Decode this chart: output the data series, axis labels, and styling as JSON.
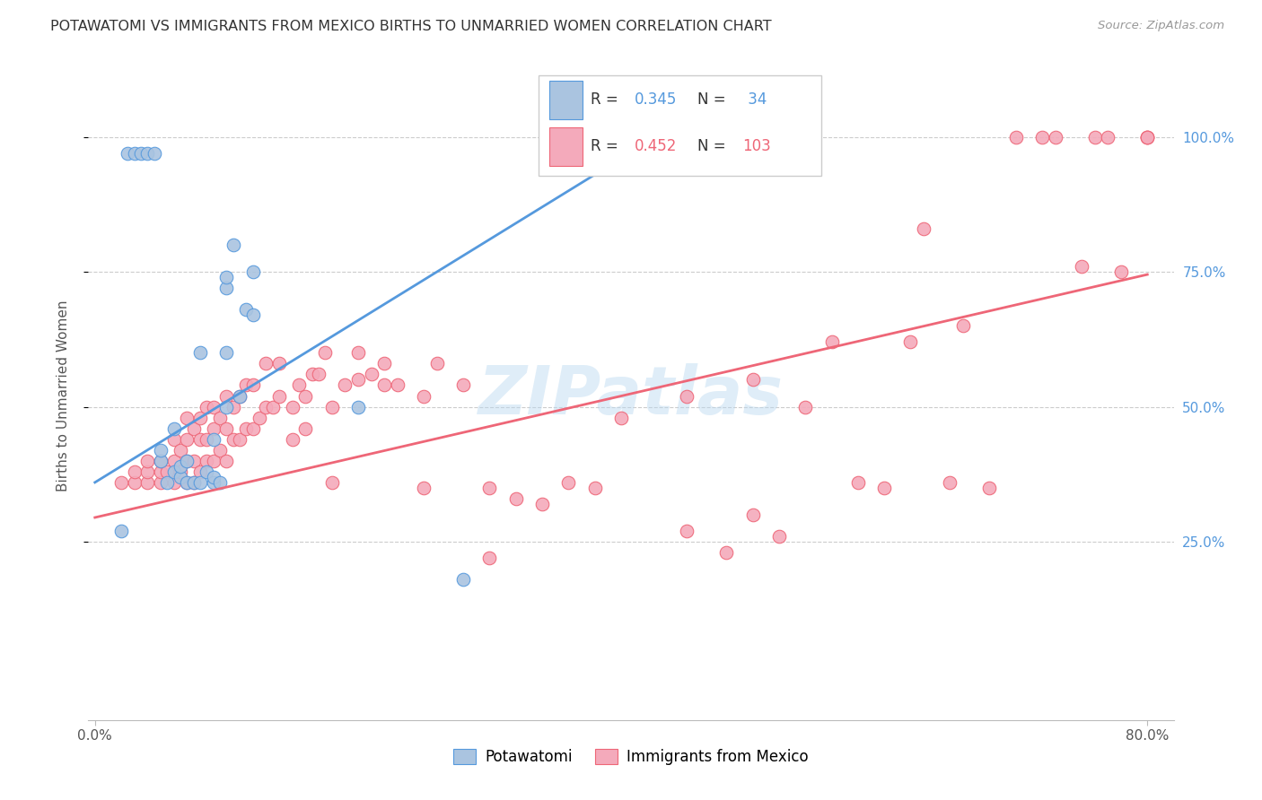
{
  "title": "POTAWATOMI VS IMMIGRANTS FROM MEXICO BIRTHS TO UNMARRIED WOMEN CORRELATION CHART",
  "source": "Source: ZipAtlas.com",
  "ylabel": "Births to Unmarried Women",
  "ytick_labels": [
    "25.0%",
    "50.0%",
    "75.0%",
    "100.0%"
  ],
  "ytick_values": [
    0.25,
    0.5,
    0.75,
    1.0
  ],
  "xlim": [
    -0.005,
    0.82
  ],
  "ylim": [
    -0.08,
    1.12
  ],
  "color_blue": "#aac4e0",
  "color_pink": "#f4aabb",
  "line_blue": "#5599dd",
  "line_pink": "#ee6677",
  "watermark": "ZIPatlas",
  "blue_line_x": [
    0.0,
    0.44
  ],
  "blue_line_y": [
    0.36,
    1.02
  ],
  "pink_line_x": [
    0.0,
    0.8
  ],
  "pink_line_y": [
    0.295,
    0.745
  ],
  "potawatomi_x": [
    0.02,
    0.025,
    0.03,
    0.035,
    0.04,
    0.045,
    0.05,
    0.05,
    0.055,
    0.06,
    0.06,
    0.065,
    0.065,
    0.07,
    0.07,
    0.075,
    0.08,
    0.08,
    0.085,
    0.09,
    0.09,
    0.09,
    0.095,
    0.1,
    0.1,
    0.1,
    0.1,
    0.105,
    0.11,
    0.115,
    0.12,
    0.12,
    0.2,
    0.28
  ],
  "potawatomi_y": [
    0.27,
    0.97,
    0.97,
    0.97,
    0.97,
    0.97,
    0.4,
    0.42,
    0.36,
    0.38,
    0.46,
    0.37,
    0.39,
    0.36,
    0.4,
    0.36,
    0.36,
    0.6,
    0.38,
    0.36,
    0.37,
    0.44,
    0.36,
    0.5,
    0.6,
    0.72,
    0.74,
    0.8,
    0.52,
    0.68,
    0.67,
    0.75,
    0.5,
    0.18
  ],
  "mexico_x": [
    0.02,
    0.03,
    0.03,
    0.04,
    0.04,
    0.04,
    0.05,
    0.05,
    0.05,
    0.055,
    0.06,
    0.06,
    0.06,
    0.065,
    0.065,
    0.07,
    0.07,
    0.07,
    0.07,
    0.075,
    0.075,
    0.075,
    0.08,
    0.08,
    0.08,
    0.085,
    0.085,
    0.085,
    0.09,
    0.09,
    0.09,
    0.095,
    0.095,
    0.1,
    0.1,
    0.1,
    0.105,
    0.105,
    0.11,
    0.11,
    0.115,
    0.115,
    0.12,
    0.12,
    0.125,
    0.13,
    0.13,
    0.135,
    0.14,
    0.14,
    0.15,
    0.15,
    0.155,
    0.16,
    0.16,
    0.165,
    0.17,
    0.175,
    0.18,
    0.18,
    0.19,
    0.2,
    0.2,
    0.21,
    0.22,
    0.22,
    0.23,
    0.25,
    0.25,
    0.26,
    0.28,
    0.3,
    0.3,
    0.32,
    0.34,
    0.36,
    0.38,
    0.4,
    0.45,
    0.45,
    0.48,
    0.5,
    0.5,
    0.52,
    0.54,
    0.56,
    0.58,
    0.6,
    0.62,
    0.63,
    0.65,
    0.66,
    0.68,
    0.7,
    0.72,
    0.73,
    0.75,
    0.76,
    0.77,
    0.78,
    0.8,
    0.8,
    0.8
  ],
  "mexico_y": [
    0.36,
    0.36,
    0.38,
    0.36,
    0.38,
    0.4,
    0.36,
    0.38,
    0.4,
    0.38,
    0.36,
    0.4,
    0.44,
    0.38,
    0.42,
    0.36,
    0.4,
    0.44,
    0.48,
    0.36,
    0.4,
    0.46,
    0.38,
    0.44,
    0.48,
    0.4,
    0.44,
    0.5,
    0.4,
    0.46,
    0.5,
    0.42,
    0.48,
    0.4,
    0.46,
    0.52,
    0.44,
    0.5,
    0.44,
    0.52,
    0.46,
    0.54,
    0.46,
    0.54,
    0.48,
    0.5,
    0.58,
    0.5,
    0.52,
    0.58,
    0.44,
    0.5,
    0.54,
    0.46,
    0.52,
    0.56,
    0.56,
    0.6,
    0.36,
    0.5,
    0.54,
    0.55,
    0.6,
    0.56,
    0.54,
    0.58,
    0.54,
    0.35,
    0.52,
    0.58,
    0.54,
    0.22,
    0.35,
    0.33,
    0.32,
    0.36,
    0.35,
    0.48,
    0.27,
    0.52,
    0.23,
    0.3,
    0.55,
    0.26,
    0.5,
    0.62,
    0.36,
    0.35,
    0.62,
    0.83,
    0.36,
    0.65,
    0.35,
    1.0,
    1.0,
    1.0,
    0.76,
    1.0,
    1.0,
    0.75,
    1.0,
    1.0,
    1.0
  ]
}
